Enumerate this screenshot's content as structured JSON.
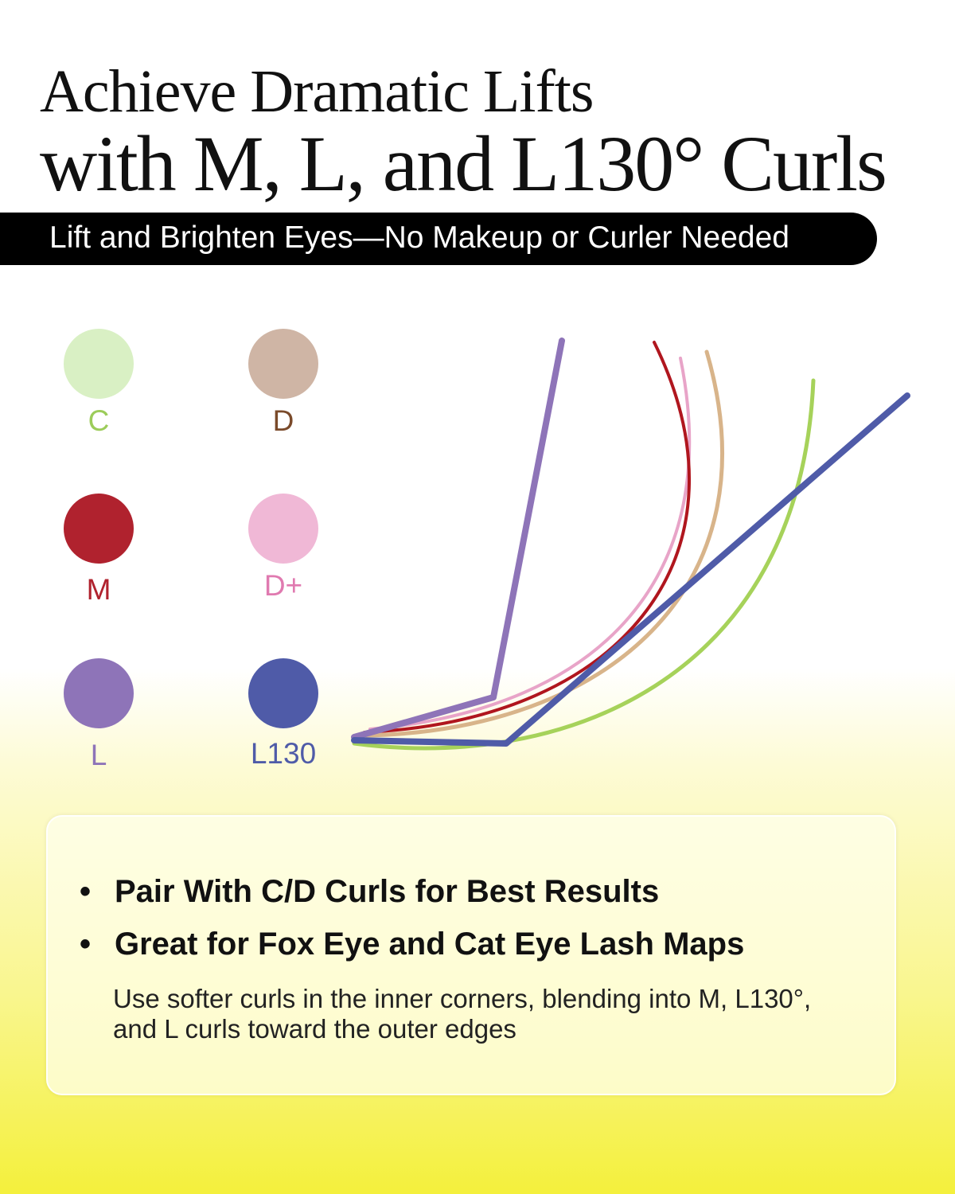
{
  "headline": {
    "line1": "Achieve Dramatic Lifts",
    "line2": "with M, L, and L130° Curls"
  },
  "banner": "Lift and Brighten Eyes—No Makeup or Curler Needed",
  "curls": [
    {
      "label": "C",
      "color": "#d9f0c4",
      "label_color": "#9ccc5a"
    },
    {
      "label": "D",
      "color": "#cfb5a5",
      "label_color": "#7a4a2a"
    },
    {
      "label": "M",
      "color": "#b0222e",
      "label_color": "#b0222e"
    },
    {
      "label": "D+",
      "color": "#f0b8d6",
      "label_color": "#e07ab0"
    },
    {
      "label": "L",
      "color": "#8e74b8",
      "label_color": "#8e74b8"
    },
    {
      "label": "L130",
      "color": "#4f5ba8",
      "label_color": "#4f5ba8"
    }
  ],
  "lash_colors": {
    "C": "#a6d25a",
    "D": "#d8b48a",
    "M": "#b0161e",
    "Dplus": "#e8a4c8",
    "L": "#8e74b8",
    "L130": "#4f5ba8"
  },
  "card": {
    "bullets": [
      "Pair With C/D Curls for Best Results",
      "Great for Fox Eye and Cat Eye Lash Maps"
    ],
    "bullet_symbol": "•",
    "note": "Use softer curls in the inner corners, blending into M, L130°, and L curls toward the outer edges"
  }
}
